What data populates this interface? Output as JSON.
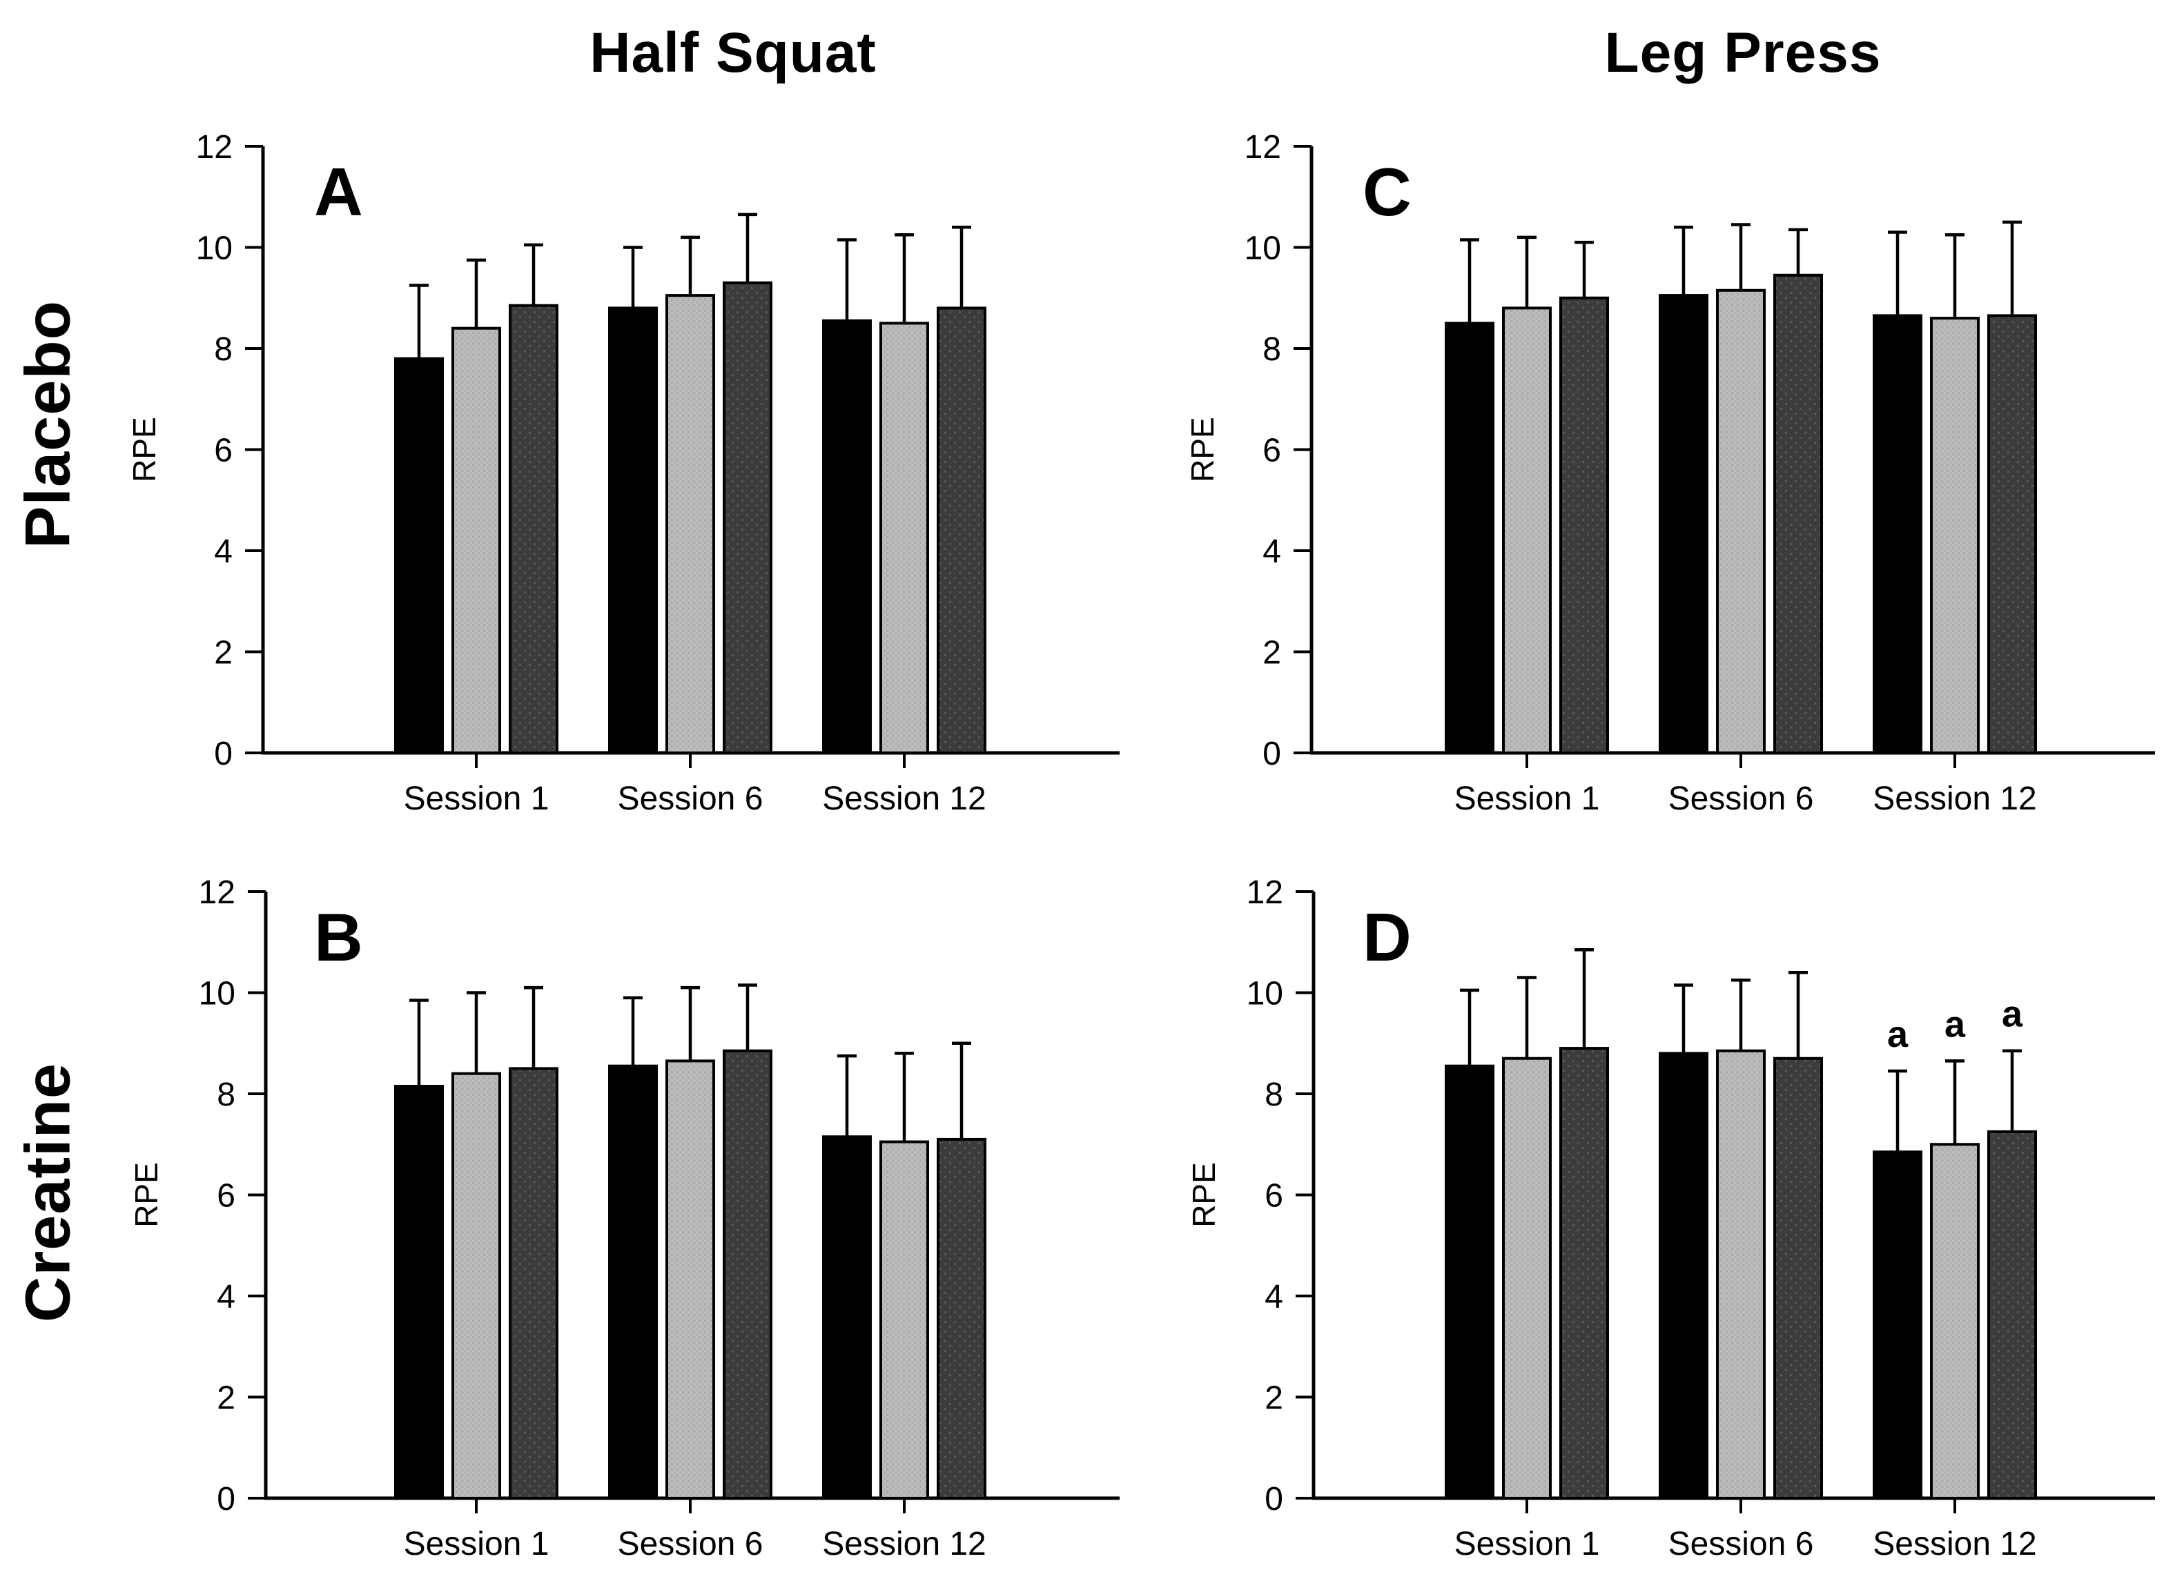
{
  "figure": {
    "column_titles": [
      "Half Squat",
      "Leg Press"
    ],
    "row_labels": [
      "Placebo",
      "Creatine"
    ],
    "ylabel": "RPE",
    "yticks": [
      0,
      2,
      4,
      6,
      8,
      10,
      12
    ],
    "categories": [
      "Session 1",
      "Session 6",
      "Session 12"
    ],
    "series_colors": {
      "series1_black": "#000000",
      "series2_light_gray": "#b5b5b5",
      "series3_dark_gray": "#3d3d3d"
    },
    "significance_marker": "a"
  },
  "chart_data": [
    {
      "type": "bar",
      "panel_letter": "A",
      "row": "Placebo",
      "column": "Half Squat",
      "ylabel": "RPE",
      "ylim": [
        0,
        12
      ],
      "categories": [
        "Session 1",
        "Session 6",
        "Session 12"
      ],
      "values": [
        [
          7.8,
          8.4,
          8.85
        ],
        [
          8.8,
          9.05,
          9.3
        ],
        [
          8.55,
          8.5,
          8.8
        ]
      ],
      "errors": [
        [
          1.45,
          1.35,
          1.2
        ],
        [
          1.2,
          1.15,
          1.35
        ],
        [
          1.6,
          1.75,
          1.6
        ]
      ],
      "sig_markers": [
        [
          "",
          "",
          ""
        ],
        [
          "",
          "",
          ""
        ],
        [
          "",
          "",
          ""
        ]
      ]
    },
    {
      "type": "bar",
      "panel_letter": "B",
      "row": "Creatine",
      "column": "Half Squat",
      "ylabel": "RPE",
      "ylim": [
        0,
        12
      ],
      "categories": [
        "Session 1",
        "Session 6",
        "Session 12"
      ],
      "values": [
        [
          8.15,
          8.4,
          8.5
        ],
        [
          8.55,
          8.65,
          8.85
        ],
        [
          7.15,
          7.05,
          7.1
        ]
      ],
      "errors": [
        [
          1.7,
          1.6,
          1.6
        ],
        [
          1.35,
          1.45,
          1.3
        ],
        [
          1.6,
          1.75,
          1.9
        ]
      ],
      "sig_markers": [
        [
          "",
          "",
          ""
        ],
        [
          "",
          "",
          ""
        ],
        [
          "",
          "",
          ""
        ]
      ]
    },
    {
      "type": "bar",
      "panel_letter": "C",
      "row": "Placebo",
      "column": "Leg Press",
      "ylabel": "RPE",
      "ylim": [
        0,
        12
      ],
      "categories": [
        "Session 1",
        "Session 6",
        "Session 12"
      ],
      "values": [
        [
          8.5,
          8.8,
          9.0
        ],
        [
          9.05,
          9.15,
          9.45
        ],
        [
          8.65,
          8.6,
          8.65
        ]
      ],
      "errors": [
        [
          1.65,
          1.4,
          1.1
        ],
        [
          1.35,
          1.3,
          0.9
        ],
        [
          1.65,
          1.65,
          1.85
        ]
      ],
      "sig_markers": [
        [
          "",
          "",
          ""
        ],
        [
          "",
          "",
          ""
        ],
        [
          "",
          "",
          ""
        ]
      ]
    },
    {
      "type": "bar",
      "panel_letter": "D",
      "row": "Creatine",
      "column": "Leg Press",
      "ylabel": "RPE",
      "ylim": [
        0,
        12
      ],
      "categories": [
        "Session 1",
        "Session 6",
        "Session 12"
      ],
      "values": [
        [
          8.55,
          8.7,
          8.9
        ],
        [
          8.8,
          8.85,
          8.7
        ],
        [
          6.85,
          7.0,
          7.25
        ]
      ],
      "errors": [
        [
          1.5,
          1.6,
          1.95
        ],
        [
          1.35,
          1.4,
          1.7
        ],
        [
          1.6,
          1.65,
          1.6
        ]
      ],
      "sig_markers": [
        [
          "",
          "",
          ""
        ],
        [
          "",
          "",
          ""
        ],
        [
          "a",
          "a",
          "a"
        ]
      ]
    }
  ]
}
